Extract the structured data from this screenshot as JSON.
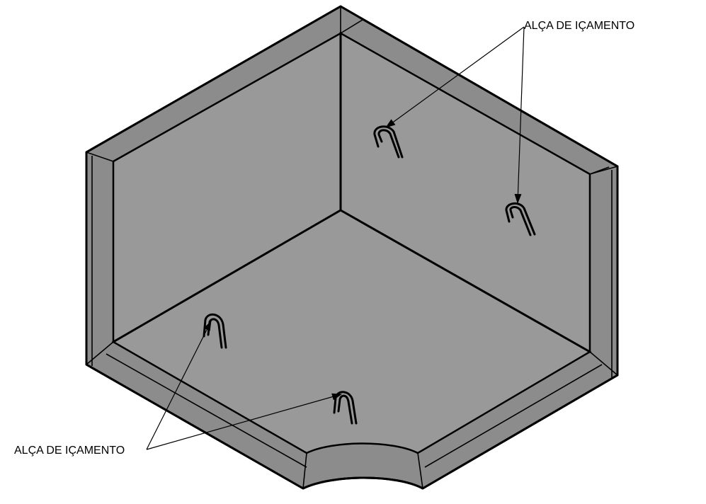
{
  "labels": {
    "top": "ALÇA DE IÇAMENTO",
    "bottom": "ALÇA DE IÇAMENTO"
  },
  "colors": {
    "face": "#999999",
    "rim": "#8c8c8c",
    "line": "#000000",
    "background": "#ffffff"
  }
}
